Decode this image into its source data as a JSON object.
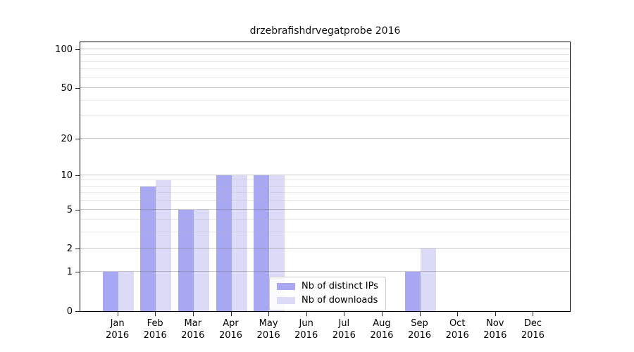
{
  "title": "drzebrafishdrvegatprobe 2016",
  "colors": {
    "distinct_ips_bar": "#a7a7f2",
    "downloads_bar": "#dbdbf8",
    "grid_major": "#c9c9c9",
    "grid_minor": "#e8e8e8",
    "axis": "#000000"
  },
  "x_axis": {
    "months": [
      "Jan",
      "Feb",
      "Mar",
      "Apr",
      "May",
      "Jun",
      "Jul",
      "Aug",
      "Sep",
      "Oct",
      "Nov",
      "Dec"
    ],
    "year": "2016"
  },
  "y_axis": {
    "tick_labels": [
      "0",
      "1",
      "2",
      "5",
      "10",
      "20",
      "50",
      "100"
    ]
  },
  "chart_data": {
    "type": "bar",
    "title": "drzebrafishdrvegatprobe 2016",
    "categories": [
      "Jan 2016",
      "Feb 2016",
      "Mar 2016",
      "Apr 2016",
      "May 2016",
      "Jun 2016",
      "Jul 2016",
      "Aug 2016",
      "Sep 2016",
      "Oct 2016",
      "Nov 2016",
      "Dec 2016"
    ],
    "series": [
      {
        "name": "Nb of distinct IPs",
        "color": "#a7a7f2",
        "values": [
          1,
          8,
          5,
          10,
          10,
          0,
          0,
          0,
          1,
          0,
          0,
          0
        ]
      },
      {
        "name": "Nb of downloads",
        "color": "#dbdbf8",
        "values": [
          1,
          9,
          5,
          10,
          10,
          0,
          0,
          0,
          2,
          0,
          0,
          0
        ]
      }
    ],
    "yscale": "log1p",
    "ylim": [
      0,
      116
    ],
    "y_major_ticks": [
      0,
      1,
      2,
      5,
      10,
      20,
      50,
      100
    ],
    "y_minor_gridlines": [
      3,
      4,
      6,
      7,
      8,
      9,
      30,
      40,
      60,
      70,
      80,
      90
    ],
    "grid": true,
    "legend_position": "lower center"
  }
}
